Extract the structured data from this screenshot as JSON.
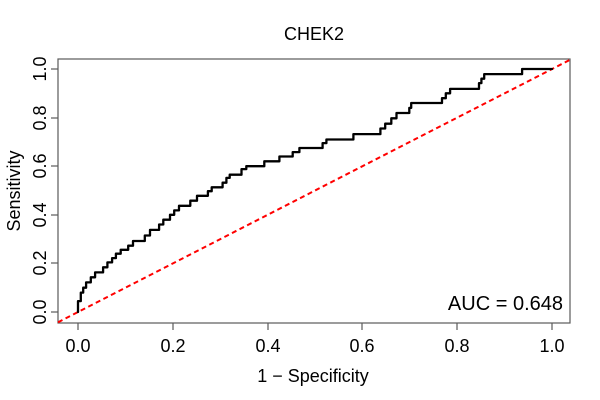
{
  "chart_data": {
    "type": "line",
    "subtype": "roc-curve",
    "title": "CHEK2",
    "xlabel": "1 − Specificity",
    "ylabel": "Sensitivity",
    "xlim": [
      0,
      1
    ],
    "ylim": [
      0,
      1
    ],
    "x_ticks": [
      0.0,
      0.2,
      0.4,
      0.6,
      0.8,
      1.0
    ],
    "y_ticks": [
      0.0,
      0.2,
      0.4,
      0.6,
      0.8,
      1.0
    ],
    "x_tick_labels": [
      "0.0",
      "0.2",
      "0.4",
      "0.6",
      "0.8",
      "1.0"
    ],
    "y_tick_labels": [
      "0.0",
      "0.2",
      "0.4",
      "0.6",
      "0.8",
      "1.0"
    ],
    "grid": false,
    "legend": null,
    "annotation": {
      "text": "AUC = 0.648",
      "value": 0.648,
      "position": "bottom-right"
    },
    "colors": {
      "frame": "#595959",
      "text": "#000000",
      "background": "#ffffff",
      "curve": "#000000",
      "diagonal": "#ff0000"
    },
    "series": [
      {
        "name": "ROC curve",
        "style": "step",
        "color": "#000000",
        "line_width": 2.3,
        "dash": null,
        "points": [
          [
            0,
            0
          ],
          [
            0,
            0.045
          ],
          [
            0.006,
            0.045
          ],
          [
            0.006,
            0.08
          ],
          [
            0.011,
            0.08
          ],
          [
            0.011,
            0.1
          ],
          [
            0.017,
            0.1
          ],
          [
            0.017,
            0.122
          ],
          [
            0.027,
            0.122
          ],
          [
            0.027,
            0.143
          ],
          [
            0.036,
            0.143
          ],
          [
            0.036,
            0.163
          ],
          [
            0.053,
            0.163
          ],
          [
            0.053,
            0.184
          ],
          [
            0.062,
            0.184
          ],
          [
            0.062,
            0.204
          ],
          [
            0.072,
            0.204
          ],
          [
            0.072,
            0.222
          ],
          [
            0.08,
            0.222
          ],
          [
            0.08,
            0.24
          ],
          [
            0.09,
            0.24
          ],
          [
            0.09,
            0.256
          ],
          [
            0.106,
            0.256
          ],
          [
            0.106,
            0.273
          ],
          [
            0.116,
            0.273
          ],
          [
            0.116,
            0.292
          ],
          [
            0.141,
            0.292
          ],
          [
            0.141,
            0.315
          ],
          [
            0.152,
            0.315
          ],
          [
            0.152,
            0.338
          ],
          [
            0.171,
            0.338
          ],
          [
            0.171,
            0.36
          ],
          [
            0.18,
            0.36
          ],
          [
            0.18,
            0.38
          ],
          [
            0.194,
            0.38
          ],
          [
            0.194,
            0.4
          ],
          [
            0.203,
            0.4
          ],
          [
            0.203,
            0.418
          ],
          [
            0.213,
            0.418
          ],
          [
            0.213,
            0.437
          ],
          [
            0.237,
            0.437
          ],
          [
            0.237,
            0.458
          ],
          [
            0.251,
            0.458
          ],
          [
            0.251,
            0.478
          ],
          [
            0.274,
            0.478
          ],
          [
            0.274,
            0.497
          ],
          [
            0.282,
            0.497
          ],
          [
            0.282,
            0.513
          ],
          [
            0.305,
            0.513
          ],
          [
            0.305,
            0.532
          ],
          [
            0.313,
            0.532
          ],
          [
            0.313,
            0.552
          ],
          [
            0.32,
            0.552
          ],
          [
            0.32,
            0.565
          ],
          [
            0.345,
            0.565
          ],
          [
            0.345,
            0.588
          ],
          [
            0.355,
            0.588
          ],
          [
            0.355,
            0.6
          ],
          [
            0.393,
            0.6
          ],
          [
            0.393,
            0.62
          ],
          [
            0.425,
            0.62
          ],
          [
            0.425,
            0.64
          ],
          [
            0.453,
            0.64
          ],
          [
            0.453,
            0.658
          ],
          [
            0.467,
            0.658
          ],
          [
            0.467,
            0.675
          ],
          [
            0.516,
            0.675
          ],
          [
            0.516,
            0.695
          ],
          [
            0.524,
            0.695
          ],
          [
            0.524,
            0.71
          ],
          [
            0.581,
            0.71
          ],
          [
            0.581,
            0.732
          ],
          [
            0.638,
            0.732
          ],
          [
            0.638,
            0.755
          ],
          [
            0.648,
            0.755
          ],
          [
            0.648,
            0.775
          ],
          [
            0.661,
            0.775
          ],
          [
            0.661,
            0.797
          ],
          [
            0.672,
            0.797
          ],
          [
            0.672,
            0.819
          ],
          [
            0.699,
            0.819
          ],
          [
            0.699,
            0.84
          ],
          [
            0.703,
            0.84
          ],
          [
            0.703,
            0.86
          ],
          [
            0.768,
            0.86
          ],
          [
            0.768,
            0.88
          ],
          [
            0.776,
            0.88
          ],
          [
            0.776,
            0.9
          ],
          [
            0.785,
            0.9
          ],
          [
            0.785,
            0.918
          ],
          [
            0.846,
            0.918
          ],
          [
            0.846,
            0.942
          ],
          [
            0.851,
            0.942
          ],
          [
            0.851,
            0.96
          ],
          [
            0.857,
            0.96
          ],
          [
            0.857,
            0.979
          ],
          [
            0.937,
            0.979
          ],
          [
            0.937,
            1
          ],
          [
            1,
            1
          ]
        ]
      },
      {
        "name": "chance diagonal",
        "style": "dashed",
        "color": "#ff0000",
        "line_width": 2,
        "dash": [
          5,
          3.5
        ],
        "points": [
          [
            0,
            0
          ],
          [
            1,
            1
          ]
        ],
        "extend_to_box": true
      }
    ]
  }
}
